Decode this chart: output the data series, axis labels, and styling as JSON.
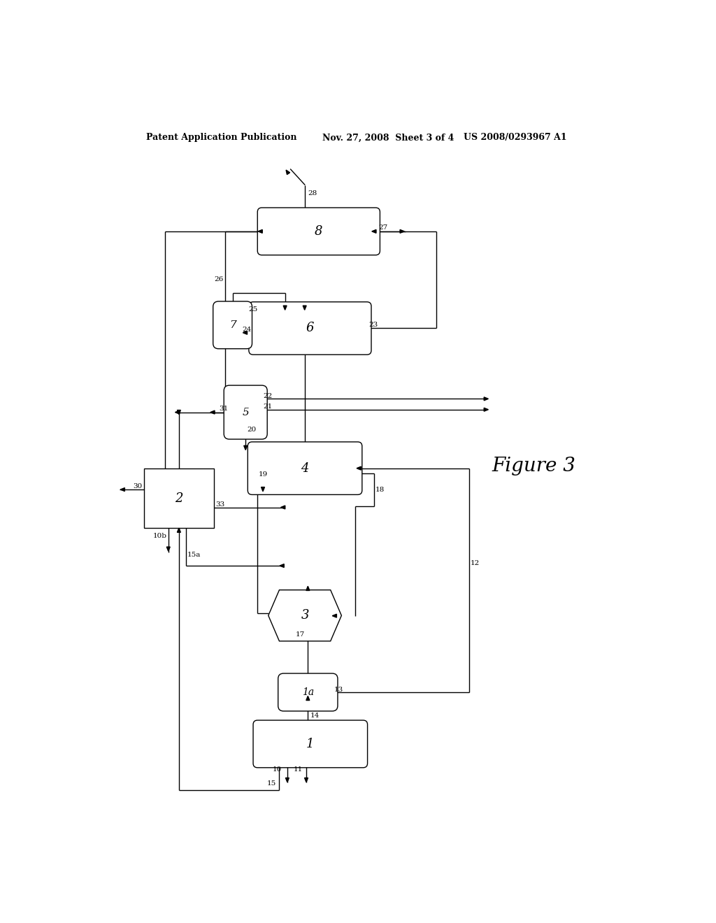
{
  "bg_color": "#ffffff",
  "line_color": "#000000",
  "header_left": "Patent Application Publication",
  "header_mid": "Nov. 27, 2008  Sheet 3 of 4",
  "header_right": "US 2008/0293967 A1",
  "figure_label": "Figure 3",
  "lw": 1.0
}
